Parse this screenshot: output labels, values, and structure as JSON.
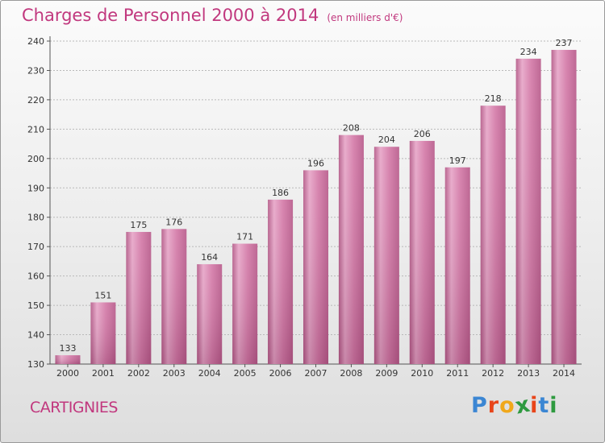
{
  "title": "Charges de Personnel 2000 à 2014",
  "subtitle": "(en milliers d'€)",
  "commune": "CARTIGNIES",
  "logo": {
    "letters": [
      "P",
      "r",
      "o",
      "x",
      "i",
      "t",
      "i"
    ],
    "colors": [
      "#3b86d3",
      "#e8451a",
      "#f0a81b",
      "#2e9a3f",
      "#e8451a",
      "#3b86d3",
      "#2e9a3f"
    ]
  },
  "colors": {
    "bar": "#d36b9f",
    "title": "#c1387e",
    "text": "#333333"
  },
  "chart_data": {
    "type": "bar",
    "title": "Charges de Personnel 2000 à 2014",
    "subtitle": "(en milliers d'€)",
    "categories": [
      "2000",
      "2001",
      "2002",
      "2003",
      "2004",
      "2005",
      "2006",
      "2007",
      "2008",
      "2009",
      "2010",
      "2011",
      "2012",
      "2013",
      "2014"
    ],
    "values": [
      133,
      151,
      175,
      176,
      164,
      171,
      186,
      196,
      208,
      204,
      206,
      197,
      218,
      234,
      237
    ],
    "yticks": [
      130,
      140,
      150,
      160,
      170,
      180,
      190,
      200,
      210,
      220,
      230,
      240
    ],
    "ylim": [
      130,
      240
    ],
    "xlabel": "",
    "ylabel": "",
    "grid": true,
    "data_labels": true
  }
}
